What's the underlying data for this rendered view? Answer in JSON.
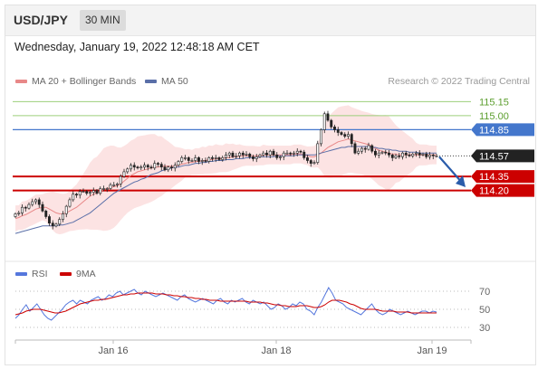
{
  "header": {
    "symbol": "USD/JPY",
    "timeframe": "30 MIN"
  },
  "datetime": "Wednesday, January 19, 2022 12:48:18 AM CET",
  "legend": {
    "ma20_bollinger": "MA 20 + Bollinger Bands",
    "ma50": "MA 50",
    "credit": "Research © 2022 Trading Central",
    "rsi": "RSI",
    "rsi_ma": "9MA"
  },
  "colors": {
    "candle": "#222222",
    "ma20": "#e88888",
    "bollinger_fill": "#fbdede",
    "ma50": "#5a6fa8",
    "resistance": "#9dcf7a",
    "resistance_text": "#5c9e2e",
    "pivot": "#4477cc",
    "support": "#cc0000",
    "last_price": "#222222",
    "rsi": "#5577dd",
    "rsi_ma": "#cc0000",
    "arrow": "#2a5caa"
  },
  "chart_data": [
    {
      "type": "candlestick",
      "ylim": [
        113.47,
        115.27
      ],
      "x_ticks": [
        "Jan 16",
        "Jan 18",
        "Jan 19"
      ],
      "levels": [
        {
          "label": "115.15",
          "value": 115.15,
          "kind": "resistance"
        },
        {
          "label": "115.00",
          "value": 115.0,
          "kind": "resistance"
        },
        {
          "label": "114.85",
          "value": 114.85,
          "kind": "pivot"
        },
        {
          "label": "114.35",
          "value": 114.35,
          "kind": "support"
        },
        {
          "label": "114.20",
          "value": 114.2,
          "kind": "support"
        }
      ],
      "last_price": {
        "label": "114.57",
        "value": 114.57
      },
      "close": [
        113.95,
        113.96,
        114.02,
        114.01,
        114.05,
        114.08,
        114.1,
        114.05,
        113.98,
        113.92,
        113.85,
        113.82,
        113.84,
        113.89,
        113.95,
        114.03,
        114.1,
        114.16,
        114.15,
        114.19,
        114.19,
        114.17,
        114.18,
        114.2,
        114.17,
        114.22,
        114.22,
        114.22,
        114.26,
        114.26,
        114.27,
        114.35,
        114.4,
        114.43,
        114.47,
        114.45,
        114.44,
        114.45,
        114.47,
        114.45,
        114.44,
        114.49,
        114.48,
        114.45,
        114.42,
        114.45,
        114.44,
        114.47,
        114.51,
        114.55,
        114.55,
        114.52,
        114.52,
        114.55,
        114.51,
        114.52,
        114.51,
        114.55,
        114.54,
        114.55,
        114.53,
        114.55,
        114.58,
        114.6,
        114.56,
        114.57,
        114.6,
        114.58,
        114.59,
        114.56,
        114.54,
        114.56,
        114.58,
        114.6,
        114.58,
        114.62,
        114.58,
        114.55,
        114.56,
        114.6,
        114.6,
        114.59,
        114.6,
        114.62,
        114.61,
        114.55,
        114.52,
        114.49,
        114.5,
        114.7,
        114.85,
        115.02,
        114.95,
        114.88,
        114.85,
        114.82,
        114.8,
        114.78,
        114.8,
        114.7,
        114.6,
        114.62,
        114.65,
        114.64,
        114.68,
        114.62,
        114.58,
        114.6,
        114.61,
        114.6,
        114.58,
        114.55,
        114.57,
        114.56,
        114.6,
        114.58,
        114.57,
        114.59,
        114.6,
        114.58,
        114.59,
        114.56,
        114.58,
        114.57,
        114.57
      ],
      "ma20": [
        113.9,
        113.91,
        113.93,
        113.94,
        113.96,
        113.98,
        114.0,
        114.01,
        114.02,
        114.02,
        114.0,
        113.98,
        113.96,
        113.95,
        113.95,
        113.96,
        113.98,
        114.0,
        114.02,
        114.05,
        114.08,
        114.11,
        114.14,
        114.16,
        114.17,
        114.19,
        114.21,
        114.22,
        114.23,
        114.24,
        114.25,
        114.27,
        114.3,
        114.33,
        114.36,
        114.38,
        114.4,
        114.41,
        114.42,
        114.43,
        114.44,
        114.45,
        114.45,
        114.46,
        114.46,
        114.46,
        114.46,
        114.46,
        114.47,
        114.48,
        114.49,
        114.5,
        114.5,
        114.51,
        114.51,
        114.52,
        114.52,
        114.53,
        114.53,
        114.54,
        114.54,
        114.54,
        114.55,
        114.55,
        114.56,
        114.56,
        114.57,
        114.57,
        114.57,
        114.57,
        114.57,
        114.57,
        114.57,
        114.58,
        114.58,
        114.58,
        114.58,
        114.58,
        114.58,
        114.58,
        114.58,
        114.58,
        114.59,
        114.59,
        114.59,
        114.58,
        114.57,
        114.56,
        114.56,
        114.58,
        114.6,
        114.63,
        114.66,
        114.68,
        114.7,
        114.72,
        114.73,
        114.74,
        114.75,
        114.74,
        114.73,
        114.72,
        114.71,
        114.7,
        114.69,
        114.67,
        114.65,
        114.63,
        114.62,
        114.61,
        114.6,
        114.59,
        114.59,
        114.58,
        114.58,
        114.58,
        114.58,
        114.58,
        114.58,
        114.58,
        114.58,
        114.58,
        114.58,
        114.58,
        114.58
      ],
      "ma50": [
        113.74,
        113.75,
        113.76,
        113.77,
        113.78,
        113.79,
        113.8,
        113.81,
        113.82,
        113.82,
        113.82,
        113.82,
        113.82,
        113.83,
        113.83,
        113.84,
        113.85,
        113.86,
        113.88,
        113.9,
        113.92,
        113.94,
        113.96,
        113.99,
        114.02,
        114.05,
        114.08,
        114.11,
        114.14,
        114.17,
        114.19,
        114.21,
        114.23,
        114.25,
        114.27,
        114.29,
        114.3,
        114.32,
        114.33,
        114.35,
        114.37,
        114.38,
        114.39,
        114.41,
        114.42,
        114.43,
        114.44,
        114.45,
        114.45,
        114.46,
        114.47,
        114.47,
        114.48,
        114.49,
        114.49,
        114.5,
        114.5,
        114.51,
        114.51,
        114.52,
        114.52,
        114.52,
        114.53,
        114.53,
        114.53,
        114.54,
        114.54,
        114.54,
        114.55,
        114.55,
        114.55,
        114.55,
        114.56,
        114.56,
        114.56,
        114.56,
        114.56,
        114.57,
        114.57,
        114.57,
        114.57,
        114.57,
        114.57,
        114.58,
        114.58,
        114.58,
        114.58,
        114.58,
        114.58,
        114.59,
        114.6,
        114.61,
        114.62,
        114.63,
        114.64,
        114.65,
        114.66,
        114.66,
        114.67,
        114.67,
        114.67,
        114.67,
        114.67,
        114.67,
        114.67,
        114.66,
        114.66,
        114.65,
        114.65,
        114.64,
        114.64,
        114.63,
        114.63,
        114.62,
        114.62,
        114.62,
        114.61,
        114.61,
        114.61,
        114.6,
        114.6,
        114.6,
        114.6,
        114.6,
        114.6
      ]
    },
    {
      "type": "line",
      "ylim": [
        20,
        80
      ],
      "y_ticks": [
        70,
        50,
        30
      ],
      "series": [
        {
          "name": "RSI",
          "values": [
            40,
            44,
            50,
            55,
            48,
            52,
            56,
            50,
            44,
            40,
            38,
            42,
            46,
            50,
            55,
            58,
            60,
            56,
            60,
            58,
            56,
            60,
            62,
            64,
            60,
            62,
            66,
            64,
            68,
            70,
            66,
            68,
            70,
            72,
            68,
            66,
            70,
            68,
            66,
            64,
            66,
            68,
            66,
            64,
            62,
            60,
            64,
            66,
            62,
            60,
            58,
            60,
            62,
            60,
            58,
            56,
            60,
            62,
            58,
            56,
            60,
            58,
            60,
            62,
            58,
            56,
            60,
            58,
            56,
            58,
            54,
            50,
            52,
            56,
            54,
            50,
            52,
            56,
            54,
            58,
            56,
            50,
            48,
            44,
            52,
            58,
            66,
            74,
            68,
            60,
            58,
            56,
            52,
            50,
            48,
            46,
            44,
            48,
            52,
            56,
            50,
            46,
            44,
            46,
            50,
            48,
            46,
            44,
            46,
            48,
            46,
            44,
            46,
            48,
            48,
            46,
            48,
            47
          ]
        },
        {
          "name": "9MA",
          "values": [
            44,
            45,
            46,
            48,
            49,
            50,
            50,
            50,
            49,
            48,
            47,
            46,
            46,
            47,
            48,
            50,
            52,
            54,
            56,
            57,
            58,
            59,
            60,
            60,
            61,
            61,
            62,
            63,
            64,
            65,
            66,
            66,
            67,
            67,
            68,
            68,
            68,
            68,
            68,
            67,
            67,
            67,
            66,
            66,
            65,
            65,
            64,
            64,
            63,
            63,
            62,
            62,
            61,
            61,
            60,
            60,
            60,
            59,
            59,
            59,
            59,
            59,
            59,
            59,
            59,
            58,
            58,
            58,
            58,
            57,
            57,
            56,
            55,
            55,
            54,
            54,
            53,
            53,
            53,
            54,
            54,
            54,
            53,
            52,
            52,
            53,
            55,
            58,
            60,
            60,
            60,
            59,
            58,
            56,
            55,
            53,
            51,
            50,
            50,
            50,
            50,
            49,
            48,
            48,
            48,
            48,
            47,
            47,
            47,
            47,
            46,
            46,
            46,
            46,
            46,
            46,
            46,
            46
          ]
        }
      ]
    }
  ]
}
